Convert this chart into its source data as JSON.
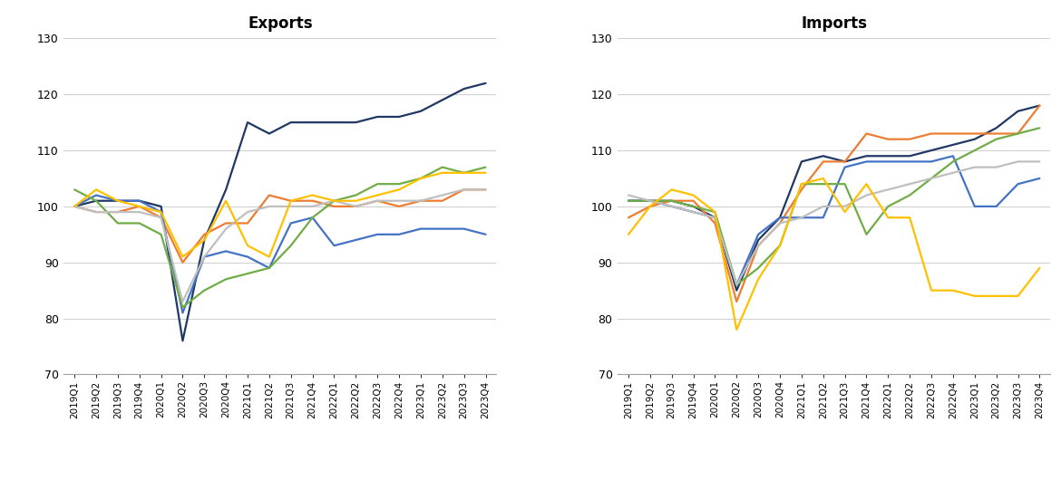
{
  "quarters": [
    "2019Q1",
    "2019Q2",
    "2019Q3",
    "2019Q4",
    "2020Q1",
    "2020Q2",
    "2020Q3",
    "2020Q4",
    "2021Q1",
    "2021Q2",
    "2021Q3",
    "2021Q4",
    "2022Q1",
    "2022Q2",
    "2022Q3",
    "2022Q4",
    "2023Q1",
    "2023Q2",
    "2023Q3",
    "2023Q4"
  ],
  "exports": {
    "dark_blue": [
      100,
      101,
      101,
      101,
      100,
      76,
      94,
      103,
      115,
      113,
      115,
      115,
      115,
      115,
      116,
      116,
      117,
      119,
      121,
      122
    ],
    "orange": [
      100,
      99,
      99,
      100,
      98,
      90,
      95,
      97,
      97,
      102,
      101,
      101,
      100,
      100,
      101,
      100,
      101,
      101,
      103,
      103
    ],
    "med_blue": [
      100,
      102,
      101,
      101,
      99,
      81,
      91,
      92,
      91,
      89,
      97,
      98,
      93,
      94,
      95,
      95,
      96,
      96,
      96,
      95
    ],
    "green": [
      103,
      101,
      97,
      97,
      95,
      82,
      85,
      87,
      88,
      89,
      93,
      98,
      101,
      102,
      104,
      104,
      105,
      107,
      106,
      107
    ],
    "gray": [
      100,
      99,
      99,
      99,
      98,
      83,
      91,
      96,
      99,
      100,
      100,
      100,
      101,
      100,
      101,
      101,
      101,
      102,
      103,
      103
    ],
    "yellow": [
      100,
      103,
      101,
      100,
      99,
      91,
      94,
      101,
      93,
      91,
      101,
      102,
      101,
      101,
      102,
      103,
      105,
      106,
      106,
      106
    ]
  },
  "imports": {
    "dark_blue": [
      101,
      101,
      101,
      100,
      98,
      85,
      94,
      98,
      108,
      109,
      108,
      109,
      109,
      109,
      110,
      111,
      112,
      114,
      117,
      118
    ],
    "orange": [
      98,
      100,
      101,
      101,
      97,
      83,
      93,
      97,
      103,
      108,
      108,
      113,
      112,
      112,
      113,
      113,
      113,
      113,
      113,
      118
    ],
    "med_blue": [
      101,
      101,
      100,
      99,
      98,
      86,
      95,
      98,
      98,
      98,
      107,
      108,
      108,
      108,
      108,
      109,
      100,
      100,
      104,
      105
    ],
    "green": [
      101,
      101,
      101,
      100,
      99,
      86,
      89,
      93,
      104,
      104,
      104,
      95,
      100,
      102,
      105,
      108,
      110,
      112,
      113,
      114
    ],
    "gray": [
      102,
      101,
      100,
      99,
      98,
      86,
      93,
      97,
      98,
      100,
      100,
      102,
      103,
      104,
      105,
      106,
      107,
      107,
      108,
      108
    ],
    "yellow": [
      95,
      100,
      103,
      102,
      99,
      78,
      87,
      93,
      104,
      105,
      99,
      104,
      98,
      98,
      85,
      85,
      84,
      84,
      84,
      89
    ]
  },
  "colors": {
    "dark_blue": "#1f3864",
    "orange": "#ed7d31",
    "med_blue": "#4472c4",
    "green": "#70ad47",
    "gray": "#bfbfbf",
    "yellow": "#ffc000"
  },
  "line_width": 1.6,
  "ylim": [
    70,
    130
  ],
  "yticks": [
    70,
    80,
    90,
    100,
    110,
    120,
    130
  ],
  "title_exports": "Exports",
  "title_imports": "Imports"
}
